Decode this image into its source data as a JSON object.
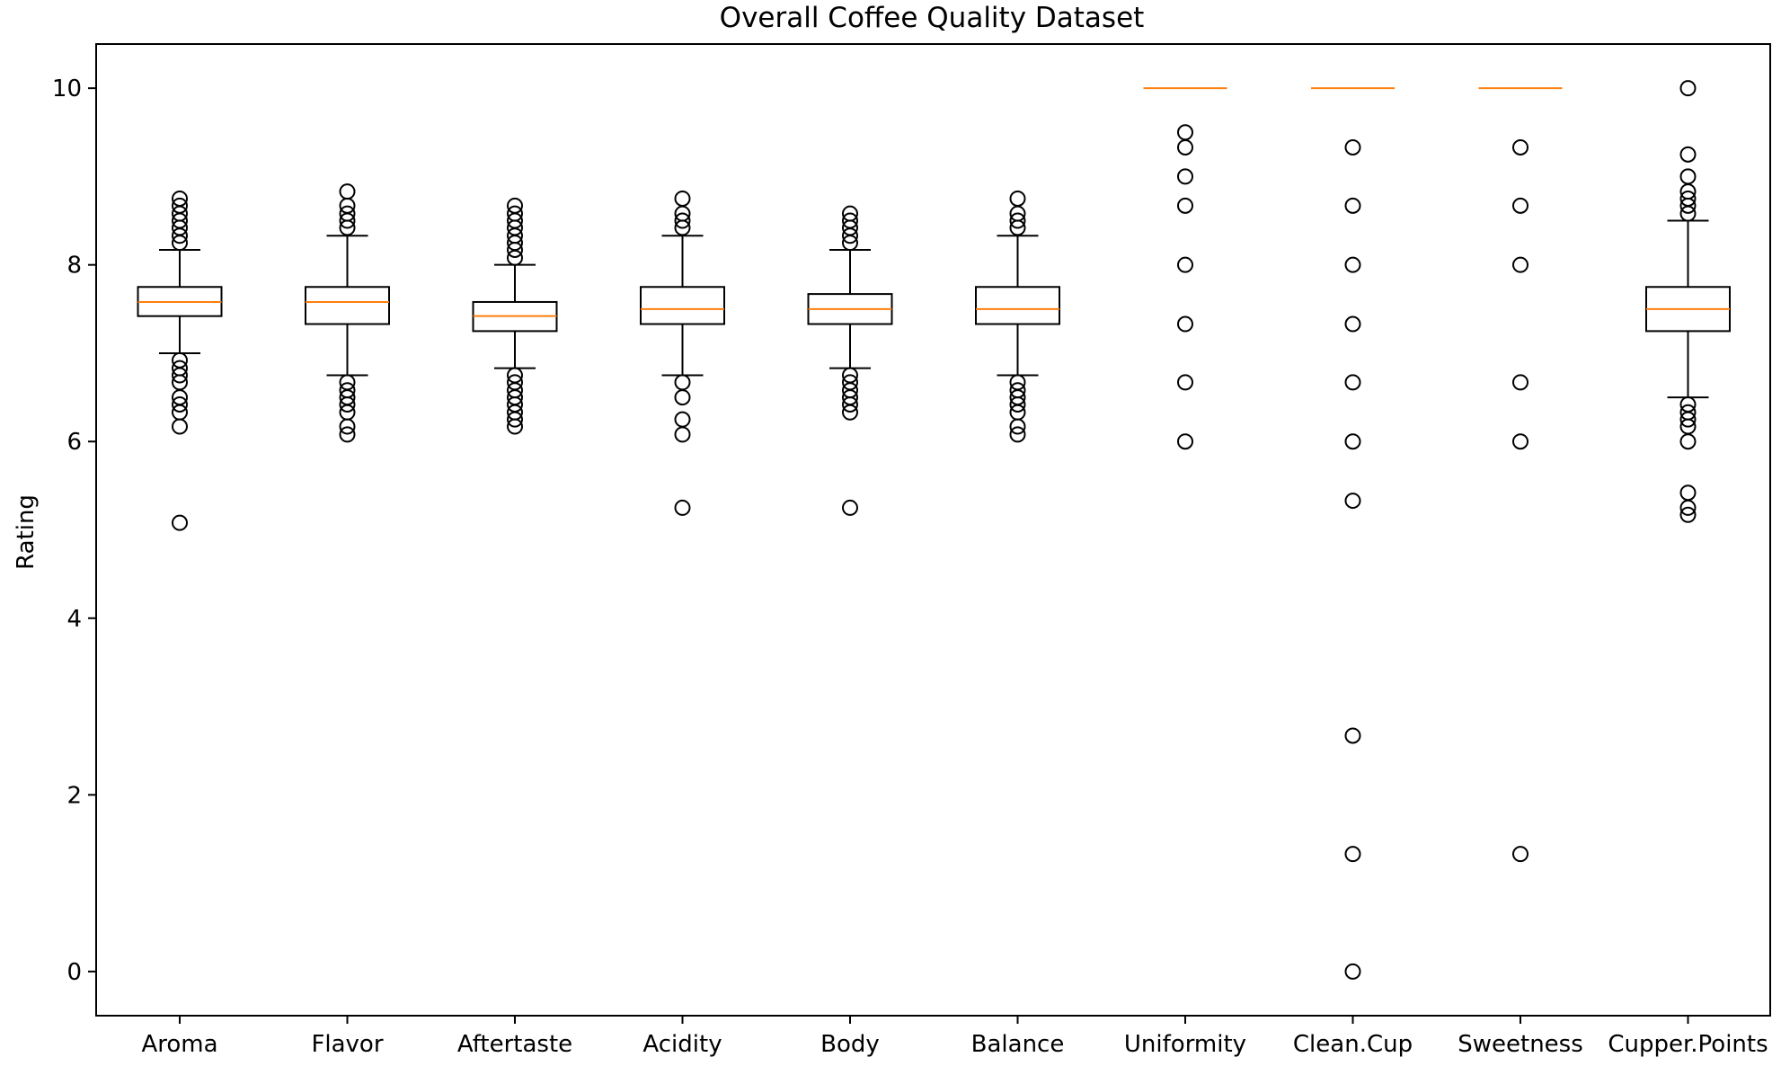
{
  "chart_data": {
    "type": "box",
    "title": "Overall Coffee Quality Dataset",
    "xlabel": "",
    "ylabel": "Rating",
    "ylim": [
      -0.5,
      10.5
    ],
    "yticks": [
      0,
      2,
      4,
      6,
      8,
      10
    ],
    "grid": false,
    "legend": "none",
    "colors": {
      "box": "#000000",
      "median": "#ff7f0e",
      "flier": "#000000"
    },
    "categories": [
      "Aroma",
      "Flavor",
      "Aftertaste",
      "Acidity",
      "Body",
      "Balance",
      "Uniformity",
      "Clean.Cup",
      "Sweetness",
      "Cupper.Points"
    ],
    "boxes": [
      {
        "name": "Aroma",
        "whisker_low": 7.0,
        "q1": 7.42,
        "median": 7.58,
        "q3": 7.75,
        "whisker_high": 8.17,
        "outliers": [
          8.75,
          8.67,
          8.58,
          8.5,
          8.42,
          8.33,
          8.25,
          6.92,
          6.83,
          6.75,
          6.67,
          6.5,
          6.42,
          6.33,
          6.17,
          5.08
        ]
      },
      {
        "name": "Flavor",
        "whisker_low": 6.75,
        "q1": 7.33,
        "median": 7.58,
        "q3": 7.75,
        "whisker_high": 8.33,
        "outliers": [
          8.83,
          8.67,
          8.58,
          8.5,
          8.42,
          6.67,
          6.58,
          6.5,
          6.42,
          6.33,
          6.17,
          6.08
        ]
      },
      {
        "name": "Aftertaste",
        "whisker_low": 6.83,
        "q1": 7.25,
        "median": 7.42,
        "q3": 7.58,
        "whisker_high": 8.0,
        "outliers": [
          8.67,
          8.58,
          8.5,
          8.42,
          8.33,
          8.25,
          8.17,
          8.08,
          6.75,
          6.67,
          6.58,
          6.5,
          6.42,
          6.33,
          6.25,
          6.17
        ]
      },
      {
        "name": "Acidity",
        "whisker_low": 6.75,
        "q1": 7.33,
        "median": 7.5,
        "q3": 7.75,
        "whisker_high": 8.33,
        "outliers": [
          8.75,
          8.58,
          8.5,
          8.42,
          6.67,
          6.5,
          6.25,
          6.08,
          5.25
        ]
      },
      {
        "name": "Body",
        "whisker_low": 6.83,
        "q1": 7.33,
        "median": 7.5,
        "q3": 7.67,
        "whisker_high": 8.17,
        "outliers": [
          8.58,
          8.5,
          8.42,
          8.33,
          8.25,
          6.75,
          6.67,
          6.58,
          6.5,
          6.42,
          6.33,
          5.25
        ]
      },
      {
        "name": "Balance",
        "whisker_low": 6.75,
        "q1": 7.33,
        "median": 7.5,
        "q3": 7.75,
        "whisker_high": 8.33,
        "outliers": [
          8.75,
          8.58,
          8.5,
          8.42,
          6.67,
          6.58,
          6.5,
          6.42,
          6.33,
          6.17,
          6.08
        ]
      },
      {
        "name": "Uniformity",
        "whisker_low": 10.0,
        "q1": 10.0,
        "median": 10.0,
        "q3": 10.0,
        "whisker_high": 10.0,
        "outliers": [
          9.5,
          9.33,
          9.0,
          8.67,
          8.0,
          7.33,
          6.67,
          6.0
        ]
      },
      {
        "name": "Clean.Cup",
        "whisker_low": 10.0,
        "q1": 10.0,
        "median": 10.0,
        "q3": 10.0,
        "whisker_high": 10.0,
        "outliers": [
          9.33,
          8.67,
          8.0,
          7.33,
          6.67,
          6.0,
          5.33,
          2.67,
          1.33,
          0.0
        ]
      },
      {
        "name": "Sweetness",
        "whisker_low": 10.0,
        "q1": 10.0,
        "median": 10.0,
        "q3": 10.0,
        "whisker_high": 10.0,
        "outliers": [
          9.33,
          8.67,
          8.0,
          6.67,
          6.0,
          1.33
        ]
      },
      {
        "name": "Cupper.Points",
        "whisker_low": 6.5,
        "q1": 7.25,
        "median": 7.5,
        "q3": 7.75,
        "whisker_high": 8.5,
        "outliers": [
          10.0,
          9.25,
          9.0,
          8.83,
          8.75,
          8.67,
          8.58,
          6.42,
          6.33,
          6.25,
          6.17,
          6.0,
          5.42,
          5.25,
          5.17
        ]
      }
    ]
  }
}
